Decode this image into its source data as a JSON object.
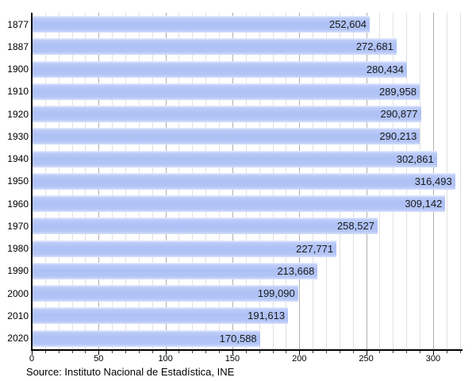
{
  "chart_data": {
    "type": "bar",
    "orientation": "horizontal",
    "title": "",
    "xlabel": "",
    "ylabel": "",
    "categories": [
      "1877",
      "1887",
      "1900",
      "1910",
      "1920",
      "1930",
      "1940",
      "1950",
      "1960",
      "1970",
      "1980",
      "1990",
      "2000",
      "2010",
      "2020"
    ],
    "values": [
      252604,
      272681,
      280434,
      289958,
      290877,
      290213,
      302861,
      316493,
      309142,
      258527,
      227771,
      213668,
      199090,
      191613,
      170588
    ],
    "value_labels": [
      "252,604",
      "272,681",
      "280,434",
      "289,958",
      "290,877",
      "290,213",
      "302,861",
      "316,493",
      "309,142",
      "258,527",
      "227,771",
      "213,668",
      "199,090",
      "191,613",
      "170,588"
    ],
    "x_ticks": [
      0,
      50,
      100,
      150,
      200,
      250,
      300
    ],
    "x_tick_labels": [
      "0",
      "50",
      "100",
      "150",
      "200",
      "250",
      "300"
    ],
    "xlim": [
      0,
      322
    ],
    "x_scale_note": "axis in thousands",
    "grid": "vertical, minor every 10, major every 50",
    "legend": "none",
    "source": "Source: Instituto Nacional de Estadística, INE",
    "colors": {
      "bar_fill": "#aec1f5",
      "bar_fill_light": "#e9effe",
      "gridline_minor": "#e1e1e1",
      "gridline_major": "#b0b0b0",
      "axis": "#000000",
      "text": "#1a1a1a"
    }
  }
}
